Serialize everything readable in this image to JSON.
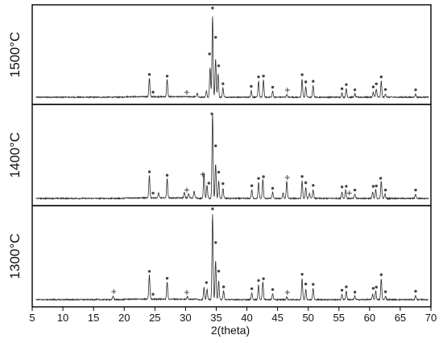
{
  "chart_data": {
    "type": "line",
    "xlabel": "2(theta)",
    "ylabel": "",
    "xlim": [
      5,
      70
    ],
    "xticks": [
      5,
      10,
      15,
      20,
      25,
      30,
      35,
      40,
      45,
      50,
      55,
      60,
      65,
      70
    ],
    "grid": false,
    "legend": "none",
    "panels": [
      {
        "name": "1500°C",
        "series_color": "#2b2b2b",
        "peaks": [
          {
            "x": 24.1,
            "h": 0.22
          },
          {
            "x": 27.0,
            "h": 0.2
          },
          {
            "x": 31.9,
            "h": 0.04
          },
          {
            "x": 33.4,
            "h": 0.07
          },
          {
            "x": 34.0,
            "h": 0.35
          },
          {
            "x": 34.4,
            "h": 0.95
          },
          {
            "x": 34.9,
            "h": 0.45
          },
          {
            "x": 35.3,
            "h": 0.28
          },
          {
            "x": 36.1,
            "h": 0.11
          },
          {
            "x": 40.7,
            "h": 0.08
          },
          {
            "x": 41.9,
            "h": 0.19
          },
          {
            "x": 42.7,
            "h": 0.2
          },
          {
            "x": 44.2,
            "h": 0.07
          },
          {
            "x": 46.5,
            "h": 0.03
          },
          {
            "x": 49.0,
            "h": 0.21
          },
          {
            "x": 49.6,
            "h": 0.12
          },
          {
            "x": 50.8,
            "h": 0.14
          },
          {
            "x": 55.5,
            "h": 0.05
          },
          {
            "x": 56.2,
            "h": 0.1
          },
          {
            "x": 57.6,
            "h": 0.04
          },
          {
            "x": 60.6,
            "h": 0.06
          },
          {
            "x": 61.1,
            "h": 0.1
          },
          {
            "x": 61.9,
            "h": 0.19
          },
          {
            "x": 62.6,
            "h": 0.04
          },
          {
            "x": 67.5,
            "h": 0.04
          }
        ],
        "stars": [
          24.1,
          24.7,
          27.0,
          34.4,
          33.9,
          34.9,
          35.4,
          36.1,
          40.7,
          41.9,
          42.7,
          44.2,
          49.0,
          49.6,
          50.8,
          55.5,
          56.2,
          57.6,
          60.6,
          61.1,
          61.9,
          62.6,
          67.5
        ],
        "plus": [
          30.2,
          46.6
        ]
      },
      {
        "name": "1400°C",
        "series_color": "#2b2b2b",
        "peaks": [
          {
            "x": 24.1,
            "h": 0.26
          },
          {
            "x": 25.6,
            "h": 0.06
          },
          {
            "x": 27.0,
            "h": 0.22
          },
          {
            "x": 29.8,
            "h": 0.06
          },
          {
            "x": 30.5,
            "h": 0.05
          },
          {
            "x": 31.4,
            "h": 0.08
          },
          {
            "x": 33.0,
            "h": 0.3
          },
          {
            "x": 33.5,
            "h": 0.15
          },
          {
            "x": 34.4,
            "h": 0.98
          },
          {
            "x": 34.9,
            "h": 0.4
          },
          {
            "x": 35.4,
            "h": 0.2
          },
          {
            "x": 36.1,
            "h": 0.12
          },
          {
            "x": 40.8,
            "h": 0.1
          },
          {
            "x": 41.9,
            "h": 0.18
          },
          {
            "x": 42.6,
            "h": 0.22
          },
          {
            "x": 44.2,
            "h": 0.07
          },
          {
            "x": 45.9,
            "h": 0.06
          },
          {
            "x": 46.5,
            "h": 0.2
          },
          {
            "x": 49.0,
            "h": 0.2
          },
          {
            "x": 49.6,
            "h": 0.12
          },
          {
            "x": 50.2,
            "h": 0.06
          },
          {
            "x": 50.8,
            "h": 0.1
          },
          {
            "x": 55.5,
            "h": 0.08
          },
          {
            "x": 56.1,
            "h": 0.1
          },
          {
            "x": 57.6,
            "h": 0.05
          },
          {
            "x": 60.5,
            "h": 0.07
          },
          {
            "x": 61.0,
            "h": 0.1
          },
          {
            "x": 61.9,
            "h": 0.2
          },
          {
            "x": 62.5,
            "h": 0.05
          },
          {
            "x": 67.5,
            "h": 0.05
          }
        ],
        "stars": [
          24.1,
          24.7,
          27.0,
          34.3,
          33.8,
          34.9,
          35.4,
          36.1,
          40.8,
          41.9,
          42.7,
          44.2,
          49.0,
          49.6,
          50.8,
          55.5,
          56.2,
          57.6,
          60.6,
          61.1,
          61.8,
          62.6,
          67.5
        ],
        "plus": [
          30.2,
          32.8,
          46.6,
          56.7
        ]
      },
      {
        "name": "1300°C",
        "series_color": "#2b2b2b",
        "peaks": [
          {
            "x": 18.2,
            "h": 0.04
          },
          {
            "x": 24.1,
            "h": 0.28
          },
          {
            "x": 27.0,
            "h": 0.2
          },
          {
            "x": 30.3,
            "h": 0.03
          },
          {
            "x": 33.0,
            "h": 0.14
          },
          {
            "x": 33.5,
            "h": 0.12
          },
          {
            "x": 34.4,
            "h": 0.98
          },
          {
            "x": 34.9,
            "h": 0.45
          },
          {
            "x": 35.4,
            "h": 0.22
          },
          {
            "x": 36.2,
            "h": 0.1
          },
          {
            "x": 40.8,
            "h": 0.08
          },
          {
            "x": 41.9,
            "h": 0.17
          },
          {
            "x": 42.6,
            "h": 0.21
          },
          {
            "x": 44.2,
            "h": 0.07
          },
          {
            "x": 46.5,
            "h": 0.03
          },
          {
            "x": 49.0,
            "h": 0.24
          },
          {
            "x": 49.6,
            "h": 0.12
          },
          {
            "x": 50.8,
            "h": 0.13
          },
          {
            "x": 55.5,
            "h": 0.06
          },
          {
            "x": 56.2,
            "h": 0.1
          },
          {
            "x": 57.6,
            "h": 0.04
          },
          {
            "x": 60.5,
            "h": 0.06
          },
          {
            "x": 61.0,
            "h": 0.1
          },
          {
            "x": 61.9,
            "h": 0.24
          },
          {
            "x": 62.6,
            "h": 0.04
          },
          {
            "x": 67.5,
            "h": 0.05
          }
        ],
        "stars": [
          24.1,
          24.7,
          27.0,
          33.4,
          34.4,
          34.9,
          35.4,
          36.2,
          40.8,
          41.9,
          42.7,
          44.2,
          49.0,
          49.6,
          50.8,
          55.5,
          56.2,
          57.6,
          60.6,
          61.1,
          61.9,
          62.6,
          67.5
        ],
        "plus": [
          18.3,
          30.2,
          46.6
        ]
      }
    ]
  }
}
